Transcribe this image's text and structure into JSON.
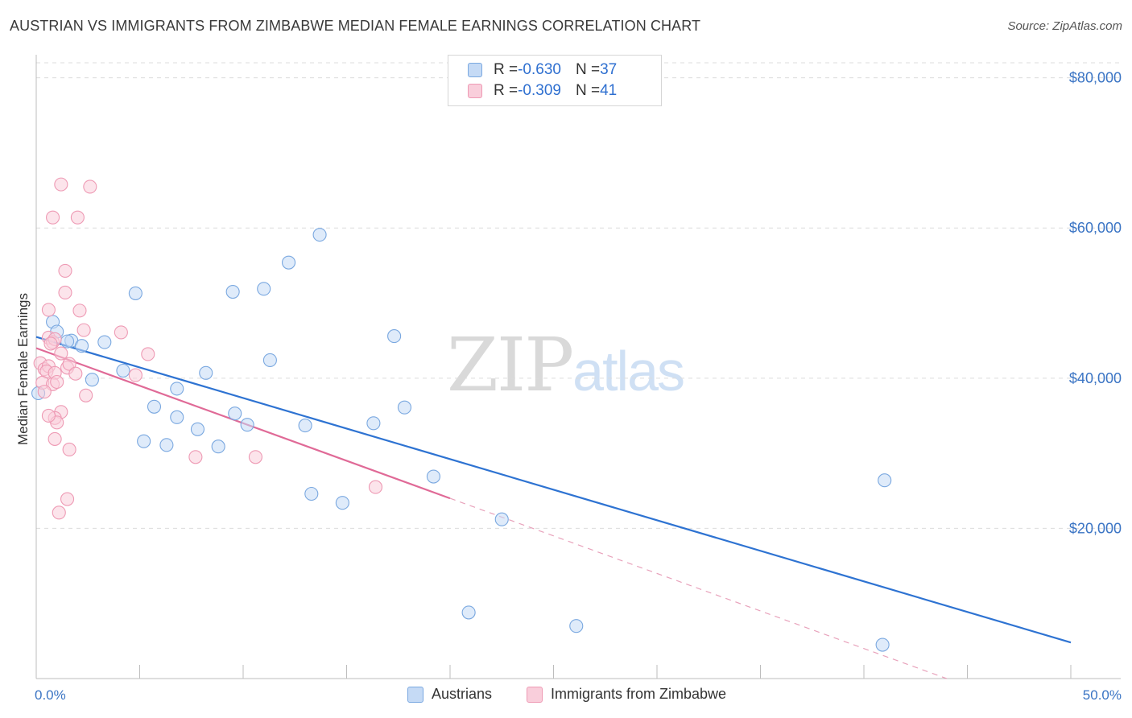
{
  "title": "AUSTRIAN VS IMMIGRANTS FROM ZIMBABWE MEDIAN FEMALE EARNINGS CORRELATION CHART",
  "source": "Source: ZipAtlas.com",
  "watermark": {
    "zip": "ZIP",
    "atlas": "atlas"
  },
  "legend": {
    "rows": [
      {
        "r_label": "R = ",
        "r_value": "-0.630",
        "n_label": "N = ",
        "n_value": "37",
        "color": "#a9c8f0",
        "border": "#7aa8e0"
      },
      {
        "r_label": "R = ",
        "r_value": "-0.309",
        "n_label": "N = ",
        "n_value": "41",
        "color": "#f7bfd0",
        "border": "#ee9ab4"
      }
    ]
  },
  "bottom_legend": {
    "austrians": "Austrians",
    "zimbabwe": "Immigrants from Zimbabwe"
  },
  "chart_data": {
    "type": "scatter",
    "title": "AUSTRIAN VS IMMIGRANTS FROM ZIMBABWE MEDIAN FEMALE EARNINGS CORRELATION CHART",
    "xlabel": "",
    "ylabel": "Median Female Earnings",
    "xlim": [
      0,
      50
    ],
    "ylim": [
      0,
      82000
    ],
    "x_tick_labels": [
      "0.0%",
      "50.0%"
    ],
    "y_ticks": [
      20000,
      40000,
      60000,
      80000
    ],
    "y_tick_labels": [
      "$20,000",
      "$40,000",
      "$60,000",
      "$80,000"
    ],
    "grid": true,
    "legend_position": "top-center",
    "series": [
      {
        "name": "Austrians",
        "color": "#7aa8e0",
        "fill": "#c5daf5",
        "trend": {
          "x": [
            0,
            50
          ],
          "y": [
            45500,
            4800
          ],
          "color": "#2e73d2"
        },
        "points": [
          [
            0.1,
            38000
          ],
          [
            0.8,
            47500
          ],
          [
            1.0,
            46200
          ],
          [
            1.7,
            45000
          ],
          [
            2.2,
            44300
          ],
          [
            3.3,
            44800
          ],
          [
            2.7,
            39800
          ],
          [
            4.2,
            41000
          ],
          [
            4.8,
            51300
          ],
          [
            6.8,
            38600
          ],
          [
            8.2,
            40700
          ],
          [
            5.7,
            36200
          ],
          [
            6.8,
            34800
          ],
          [
            7.8,
            33200
          ],
          [
            9.6,
            35300
          ],
          [
            10.2,
            33800
          ],
          [
            5.2,
            31600
          ],
          [
            6.3,
            31100
          ],
          [
            8.8,
            30900
          ],
          [
            9.5,
            51500
          ],
          [
            11.0,
            51900
          ],
          [
            11.3,
            42400
          ],
          [
            12.2,
            55400
          ],
          [
            13.7,
            59100
          ],
          [
            13.0,
            33700
          ],
          [
            17.3,
            45600
          ],
          [
            16.3,
            34000
          ],
          [
            17.8,
            36100
          ],
          [
            19.2,
            26900
          ],
          [
            13.3,
            24600
          ],
          [
            14.8,
            23400
          ],
          [
            22.5,
            21200
          ],
          [
            41.0,
            26400
          ],
          [
            20.9,
            8800
          ],
          [
            26.1,
            7000
          ],
          [
            40.9,
            4500
          ],
          [
            1.5,
            44900
          ]
        ]
      },
      {
        "name": "Immigrants from Zimbabwe",
        "color": "#ee9ab4",
        "fill": "#f9cedb",
        "trend": {
          "x": [
            0,
            20
          ],
          "y": [
            44000,
            24000
          ],
          "color": "#e06a97"
        },
        "trend_dashed": {
          "x": [
            20,
            44
          ],
          "y": [
            24000,
            0
          ],
          "color": "#e8a2bb"
        },
        "points": [
          [
            1.2,
            65800
          ],
          [
            2.6,
            65500
          ],
          [
            0.8,
            61400
          ],
          [
            2.0,
            61400
          ],
          [
            1.4,
            54300
          ],
          [
            1.4,
            51400
          ],
          [
            0.6,
            49100
          ],
          [
            2.1,
            49000
          ],
          [
            0.6,
            45400
          ],
          [
            0.8,
            44800
          ],
          [
            0.9,
            45200
          ],
          [
            1.2,
            43300
          ],
          [
            0.2,
            42000
          ],
          [
            0.4,
            41200
          ],
          [
            0.6,
            41600
          ],
          [
            1.5,
            41400
          ],
          [
            0.5,
            40900
          ],
          [
            0.9,
            40700
          ],
          [
            1.6,
            41900
          ],
          [
            1.9,
            40600
          ],
          [
            0.3,
            39400
          ],
          [
            0.8,
            39200
          ],
          [
            1.0,
            39500
          ],
          [
            0.4,
            38200
          ],
          [
            2.4,
            37700
          ],
          [
            4.1,
            46100
          ],
          [
            5.4,
            43200
          ],
          [
            4.8,
            40400
          ],
          [
            1.2,
            35500
          ],
          [
            0.9,
            34700
          ],
          [
            1.0,
            34100
          ],
          [
            0.6,
            35000
          ],
          [
            0.9,
            31900
          ],
          [
            1.6,
            30500
          ],
          [
            7.7,
            29500
          ],
          [
            10.6,
            29500
          ],
          [
            16.4,
            25500
          ],
          [
            1.5,
            23900
          ],
          [
            1.1,
            22100
          ],
          [
            2.3,
            46400
          ],
          [
            0.7,
            44600
          ]
        ]
      }
    ]
  }
}
